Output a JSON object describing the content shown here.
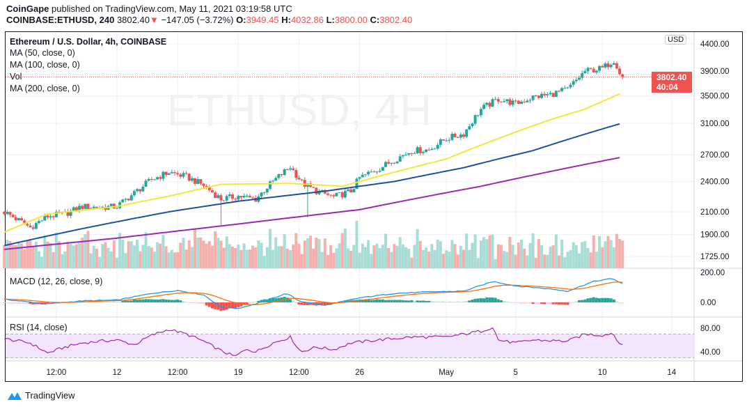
{
  "header": {
    "publisher": "CoinGape",
    "published_text": "published on TradingView.com, May 11, 2021 03:19:58 UTC",
    "symbol": "COINBASE:ETHUSD, 240",
    "last": "3802.40",
    "change": "−147.05 (−3.72%)",
    "o_label": "O:",
    "o": "3949.45",
    "h_label": "H:",
    "h": "4032.86",
    "l_label": "L:",
    "l": "3800.00",
    "c_label": "C:",
    "c": "3802.40"
  },
  "legend": {
    "title": "Ethereum / U.S. Dollar, 4h, COINBASE",
    "ma50": "MA (50, close, 0)",
    "ma100": "MA (100, close, 0)",
    "vol": "Vol",
    "ma200": "MA (200, close, 0)",
    "macd": "MACD (12, 26, close, 9)",
    "rsi": "RSI (14, close)"
  },
  "watermark": "ETHUSD, 4H",
  "price_axis": {
    "currency": "USD",
    "last_price": "3802.40",
    "countdown": "40:04"
  },
  "footer": {
    "brand": "TradingView"
  },
  "colors": {
    "up": "#26a69a",
    "down": "#ef5350",
    "ma50": "#f5e63a",
    "ma100": "#1e4fa0",
    "ma200": "#9c27b0",
    "macd": "#2196f3",
    "signal": "#ff6d00",
    "rsi": "#9c27b0"
  },
  "chart_data": {
    "type": "candlestick",
    "timeframe": "4h",
    "x_unit": "day (April 2021; May d = 30+d)",
    "x_ticks": [
      {
        "label": "12:00",
        "day": 8.5
      },
      {
        "label": "12",
        "day": 12
      },
      {
        "label": "12:00",
        "day": 15.5
      },
      {
        "label": "19",
        "day": 19
      },
      {
        "label": "12:00",
        "day": 22.5
      },
      {
        "label": "26",
        "day": 26
      },
      {
        "label": "May",
        "day": 31
      },
      {
        "label": "5",
        "day": 35
      },
      {
        "label": "10",
        "day": 40
      },
      {
        "label": "14",
        "day": 44
      }
    ],
    "price_ticks": [
      "4400.00",
      "3900.00",
      "3500.00",
      "3100.00",
      "2700.00",
      "2400.00",
      "2100.00",
      "1900.00",
      "1725.00"
    ],
    "price_tick_values": [
      4400,
      3900,
      3500,
      3100,
      2700,
      2400,
      2100,
      1900,
      1725
    ],
    "price_scale": "log",
    "close_path": [
      [
        5.5,
        2100
      ],
      [
        7,
        1960
      ],
      [
        8,
        2060
      ],
      [
        9,
        2080
      ],
      [
        10,
        2150
      ],
      [
        11,
        2140
      ],
      [
        12,
        2150
      ],
      [
        13,
        2280
      ],
      [
        14,
        2420
      ],
      [
        15,
        2500
      ],
      [
        16,
        2450
      ],
      [
        17,
        2360
      ],
      [
        18,
        2220
      ],
      [
        19,
        2250
      ],
      [
        20,
        2220
      ],
      [
        21,
        2400
      ],
      [
        22,
        2560
      ],
      [
        22.7,
        2380
      ],
      [
        23.5,
        2300
      ],
      [
        24.5,
        2240
      ],
      [
        25.5,
        2300
      ],
      [
        26,
        2440
      ],
      [
        27,
        2530
      ],
      [
        28,
        2640
      ],
      [
        29,
        2750
      ],
      [
        30,
        2760
      ],
      [
        31,
        2900
      ],
      [
        32,
        2960
      ],
      [
        33,
        3300
      ],
      [
        34,
        3450
      ],
      [
        35,
        3380
      ],
      [
        36,
        3480
      ],
      [
        37,
        3520
      ],
      [
        38,
        3600
      ],
      [
        39,
        3900
      ],
      [
        40,
        3950
      ],
      [
        40.7,
        4100
      ],
      [
        41.1,
        3802.4
      ]
    ],
    "spikes": [
      [
        18,
        1980
      ],
      [
        23,
        2050
      ]
    ],
    "ma50": [
      [
        5.5,
        1920
      ],
      [
        8,
        2080
      ],
      [
        12,
        2150
      ],
      [
        15,
        2250
      ],
      [
        18,
        2370
      ],
      [
        22,
        2380
      ],
      [
        25,
        2350
      ],
      [
        28,
        2500
      ],
      [
        31,
        2650
      ],
      [
        34,
        2900
      ],
      [
        37,
        3150
      ],
      [
        39,
        3300
      ],
      [
        41.1,
        3540
      ]
    ],
    "ma100": [
      [
        5.5,
        1810
      ],
      [
        10,
        1950
      ],
      [
        15,
        2100
      ],
      [
        19,
        2200
      ],
      [
        24,
        2300
      ],
      [
        28,
        2400
      ],
      [
        32,
        2550
      ],
      [
        36,
        2750
      ],
      [
        41.1,
        3100
      ]
    ],
    "ma200": [
      [
        5.5,
        1780
      ],
      [
        12,
        1870
      ],
      [
        19,
        1990
      ],
      [
        26,
        2120
      ],
      [
        33,
        2350
      ],
      [
        41.1,
        2670
      ]
    ],
    "macd_ticks": [
      "200.00",
      "0.00"
    ],
    "macd": [
      [
        5.5,
        20
      ],
      [
        8,
        -10
      ],
      [
        10,
        10
      ],
      [
        12,
        15
      ],
      [
        14,
        60
      ],
      [
        15.5,
        80
      ],
      [
        17,
        50
      ],
      [
        18,
        -30
      ],
      [
        19,
        -40
      ],
      [
        20,
        -10
      ],
      [
        21.8,
        60
      ],
      [
        22.5,
        10
      ],
      [
        24,
        -20
      ],
      [
        26,
        30
      ],
      [
        28,
        60
      ],
      [
        30,
        70
      ],
      [
        32,
        75
      ],
      [
        33.7,
        140
      ],
      [
        35,
        110
      ],
      [
        37,
        90
      ],
      [
        38,
        75
      ],
      [
        39.5,
        140
      ],
      [
        40.6,
        160
      ],
      [
        41.1,
        125
      ]
    ],
    "rsi_ticks": [
      "80.00",
      "40.00"
    ],
    "rsi_band": [
      30,
      70
    ],
    "rsi": [
      [
        5.5,
        62
      ],
      [
        7,
        55
      ],
      [
        8,
        38
      ],
      [
        9,
        48
      ],
      [
        10,
        55
      ],
      [
        11,
        58
      ],
      [
        12,
        60
      ],
      [
        13,
        52
      ],
      [
        14,
        68
      ],
      [
        15,
        78
      ],
      [
        16,
        70
      ],
      [
        17,
        58
      ],
      [
        18,
        42
      ],
      [
        18.8,
        32
      ],
      [
        19.5,
        45
      ],
      [
        20,
        40
      ],
      [
        21,
        55
      ],
      [
        22,
        65
      ],
      [
        22.6,
        40
      ],
      [
        23.5,
        48
      ],
      [
        24.5,
        44
      ],
      [
        25.5,
        55
      ],
      [
        27,
        60
      ],
      [
        29,
        65
      ],
      [
        31,
        65
      ],
      [
        32,
        70
      ],
      [
        33,
        75
      ],
      [
        33.7,
        82
      ],
      [
        34,
        60
      ],
      [
        35,
        55
      ],
      [
        36,
        60
      ],
      [
        38,
        58
      ],
      [
        39,
        70
      ],
      [
        40,
        68
      ],
      [
        40.6,
        72
      ],
      [
        41.1,
        50
      ]
    ]
  }
}
